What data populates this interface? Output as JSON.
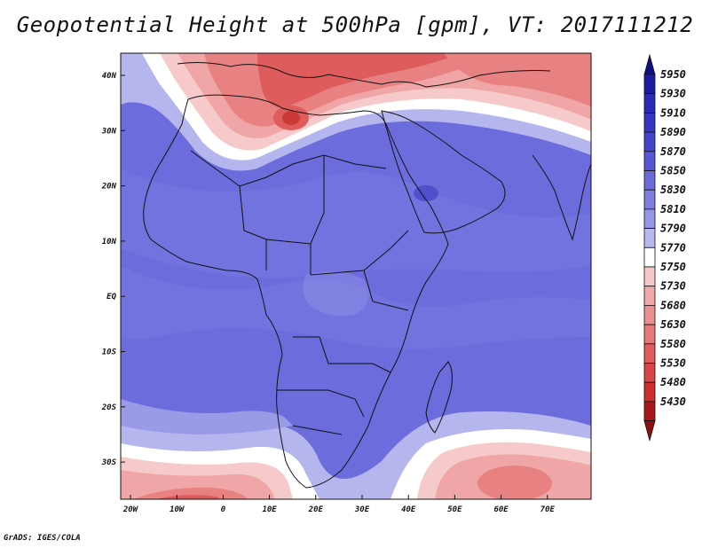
{
  "title": "Geopotential Height at 500hPa [gpm], VT: 2017111212",
  "footer": "GrADS: IGES/COLA",
  "lon_ticks": [
    "20W",
    "10W",
    "0",
    "10E",
    "20E",
    "30E",
    "40E",
    "50E",
    "60E",
    "70E"
  ],
  "lat_ticks": [
    "40N",
    "30N",
    "20N",
    "10N",
    "EQ",
    "10S",
    "20S",
    "30S"
  ],
  "colorbar": {
    "levels": [
      "5950",
      "5930",
      "5910",
      "5890",
      "5870",
      "5850",
      "5830",
      "5810",
      "5790",
      "5770",
      "5750",
      "5730",
      "5680",
      "5630",
      "5580",
      "5530",
      "5480",
      "5430"
    ],
    "colors": [
      "#1c1ca0",
      "#2a2ab8",
      "#3535c4",
      "#4444cc",
      "#5656d6",
      "#6a6ad8",
      "#7e7ee0",
      "#9696e6",
      "#b8b8ef",
      "#ffffff",
      "#f6c8c8",
      "#f0a8a8",
      "#eb9090",
      "#e57878",
      "#e05e5e",
      "#d94646",
      "#cc3030",
      "#a81818"
    ],
    "top_color": "#101080",
    "bottom_color": "#8c1010"
  },
  "colors": {
    "deep_blue": "#6464dc",
    "mid_blue": "#7a7ae2",
    "light_blue": "#a2a2ea",
    "pale_blue": "#c8c8f2",
    "white": "#ffffff",
    "pale_red": "#f6caca",
    "light_red": "#f0a6a6",
    "mid_red": "#e88282",
    "red": "#de5c5c",
    "dark_red": "#cc3838"
  }
}
